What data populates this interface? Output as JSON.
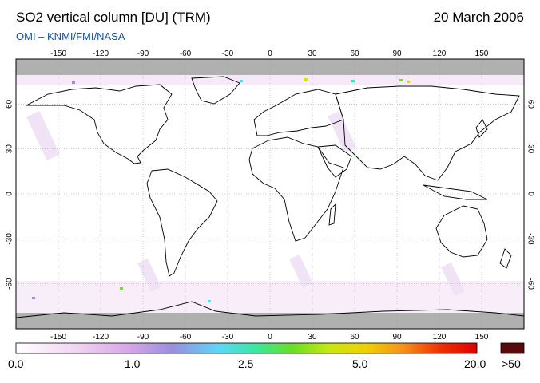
{
  "header": {
    "title": "SO2 vertical column [DU] (TRM)",
    "date": "20 March 2006",
    "credit": "OMI  –  KNMI/FMI/NASA"
  },
  "map": {
    "projection": "equirectangular",
    "lon_range": [
      -180,
      180
    ],
    "lat_range": [
      -90,
      90
    ],
    "lon_ticks": [
      "-150",
      "-120",
      "-90",
      "-60",
      "-30",
      "0",
      "30",
      "60",
      "90",
      "120",
      "150"
    ],
    "lat_ticks": [
      "60",
      "30",
      "0",
      "-30",
      "-60"
    ],
    "no_data_color": "#b0b0b0",
    "background_color": "#ffffff",
    "coastline_color": "#000000"
  },
  "colorbar": {
    "labels": [
      "0.0",
      "1.0",
      "2.5",
      "5.0",
      "20.0"
    ],
    "overflow_label": ">50",
    "overflow_color": "#5a0a0a",
    "colors": [
      "#ffffff",
      "#f3d8f3",
      "#d9a8e8",
      "#9a8ee0",
      "#5ad8f8",
      "#38e8a0",
      "#68e020",
      "#c8e810",
      "#f0d000",
      "#f89018",
      "#f03000",
      "#e00000"
    ]
  }
}
